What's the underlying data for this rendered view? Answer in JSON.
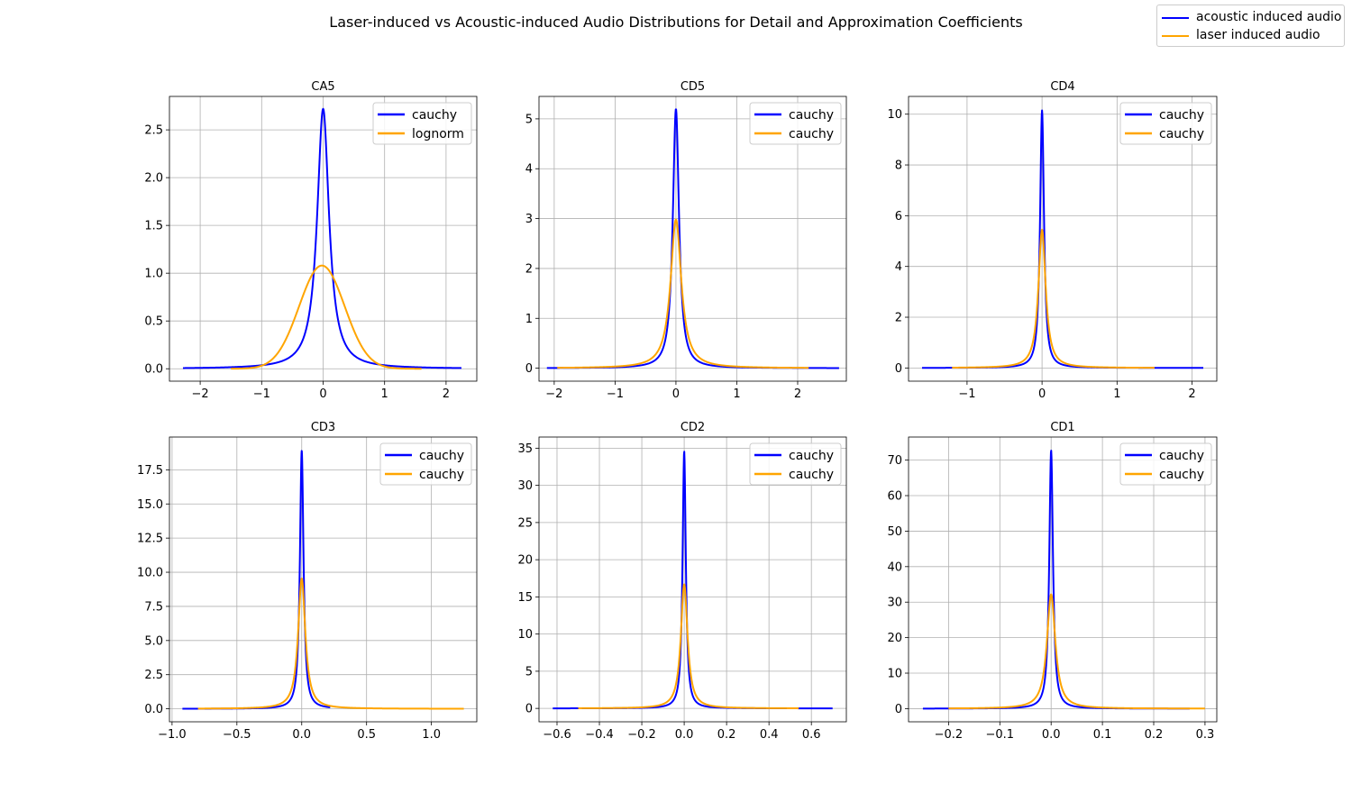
{
  "figure_title": "Laser-induced vs Acoustic-induced Audio Distributions for Detail and Approximation Coefficients",
  "legend": [
    {
      "label": "acoustic induced audio",
      "color": "#0000ff"
    },
    {
      "label": "laser induced audio",
      "color": "#ffa500"
    }
  ],
  "chart_data": [
    {
      "type": "line",
      "title": "CA5",
      "xlim": [
        -2.5,
        2.5
      ],
      "ylim": [
        -0.13,
        2.85
      ],
      "xticks": [
        -2,
        -1,
        0,
        1,
        2
      ],
      "xtick_labels": [
        "−2",
        "−1",
        "0",
        "1",
        "2"
      ],
      "yticks": [
        0,
        0.5,
        1,
        1.5,
        2,
        2.5
      ],
      "ytick_labels": [
        "0.0",
        "0.5",
        "1.0",
        "1.5",
        "2.0",
        "2.5"
      ],
      "grid": true,
      "legend_placement": "top-right",
      "series": [
        {
          "name": "cauchy",
          "dist": "cauchy",
          "color": "#0000ff",
          "loc": 0.0,
          "peak": 2.72,
          "x_range": [
            -2.28,
            2.25
          ]
        },
        {
          "name": "lognorm",
          "dist": "gauss",
          "color": "#ffa500",
          "loc": -0.02,
          "peak": 1.08,
          "sigma": 0.37,
          "x_range": [
            -1.5,
            1.6
          ]
        }
      ]
    },
    {
      "type": "line",
      "title": "CD5",
      "xlim": [
        -2.25,
        2.8
      ],
      "ylim": [
        -0.26,
        5.45
      ],
      "xticks": [
        -2,
        -1,
        0,
        1,
        2
      ],
      "xtick_labels": [
        "−2",
        "−1",
        "0",
        "1",
        "2"
      ],
      "yticks": [
        0,
        1,
        2,
        3,
        4,
        5
      ],
      "ytick_labels": [
        "0",
        "1",
        "2",
        "3",
        "4",
        "5"
      ],
      "grid": true,
      "legend_placement": "top-right",
      "series": [
        {
          "name": "cauchy",
          "dist": "cauchy",
          "color": "#0000ff",
          "loc": 0.0,
          "peak": 5.2,
          "x_range": [
            -2.12,
            2.68
          ]
        },
        {
          "name": "cauchy",
          "dist": "cauchy",
          "color": "#ffa500",
          "loc": 0.0,
          "peak": 2.98,
          "x_range": [
            -1.95,
            2.18
          ]
        }
      ]
    },
    {
      "type": "line",
      "title": "CD4",
      "xlim": [
        -1.78,
        2.33
      ],
      "ylim": [
        -0.52,
        10.7
      ],
      "xticks": [
        -1,
        0,
        1,
        2
      ],
      "xtick_labels": [
        "−1",
        "0",
        "1",
        "2"
      ],
      "yticks": [
        0,
        2,
        4,
        6,
        8,
        10
      ],
      "ytick_labels": [
        "0",
        "2",
        "4",
        "6",
        "8",
        "10"
      ],
      "grid": true,
      "legend_placement": "top-right",
      "series": [
        {
          "name": "cauchy",
          "dist": "cauchy",
          "color": "#0000ff",
          "loc": 0.0,
          "peak": 10.15,
          "x_range": [
            -1.6,
            2.15
          ]
        },
        {
          "name": "cauchy",
          "dist": "cauchy",
          "color": "#ffa500",
          "loc": 0.0,
          "peak": 5.45,
          "x_range": [
            -1.2,
            1.5
          ]
        }
      ]
    },
    {
      "type": "line",
      "title": "CD3",
      "xlim": [
        -1.02,
        1.35
      ],
      "ylim": [
        -0.95,
        19.9
      ],
      "xticks": [
        -1,
        -0.5,
        0,
        0.5,
        1
      ],
      "xtick_labels": [
        "−1.0",
        "−0.5",
        "0.0",
        "0.5",
        "1.0"
      ],
      "yticks": [
        0,
        2.5,
        5,
        7.5,
        10,
        12.5,
        15,
        17.5
      ],
      "ytick_labels": [
        "0.0",
        "2.5",
        "5.0",
        "7.5",
        "10.0",
        "12.5",
        "15.0",
        "17.5"
      ],
      "grid": true,
      "legend_placement": "top-right",
      "series": [
        {
          "name": "cauchy",
          "dist": "cauchy",
          "color": "#0000ff",
          "loc": 0.0,
          "peak": 18.9,
          "x_range": [
            -0.92,
            0.22
          ]
        },
        {
          "name": "cauchy",
          "dist": "cauchy",
          "color": "#ffa500",
          "loc": 0.0,
          "peak": 9.55,
          "x_range": [
            -0.8,
            1.25
          ]
        }
      ]
    },
    {
      "type": "line",
      "title": "CD2",
      "xlim": [
        -0.685,
        0.765
      ],
      "ylim": [
        -1.8,
        36.5
      ],
      "xticks": [
        -0.6,
        -0.4,
        -0.2,
        0,
        0.2,
        0.4,
        0.6
      ],
      "xtick_labels": [
        "−0.6",
        "−0.4",
        "−0.2",
        "0.0",
        "0.2",
        "0.4",
        "0.6"
      ],
      "yticks": [
        0,
        5,
        10,
        15,
        20,
        25,
        30,
        35
      ],
      "ytick_labels": [
        "0",
        "5",
        "10",
        "15",
        "20",
        "25",
        "30",
        "35"
      ],
      "grid": true,
      "legend_placement": "top-right",
      "series": [
        {
          "name": "cauchy",
          "dist": "cauchy",
          "color": "#0000ff",
          "loc": 0.0,
          "peak": 34.6,
          "x_range": [
            -0.62,
            0.7
          ]
        },
        {
          "name": "cauchy",
          "dist": "cauchy",
          "color": "#ffa500",
          "loc": 0.0,
          "peak": 16.7,
          "x_range": [
            -0.5,
            0.54
          ]
        }
      ]
    },
    {
      "type": "line",
      "title": "CD1",
      "xlim": [
        -0.278,
        0.323
      ],
      "ylim": [
        -3.7,
        76.5
      ],
      "xticks": [
        -0.2,
        -0.1,
        0,
        0.1,
        0.2,
        0.3
      ],
      "xtick_labels": [
        "−0.2",
        "−0.1",
        "0.0",
        "0.1",
        "0.2",
        "0.3"
      ],
      "yticks": [
        0,
        10,
        20,
        30,
        40,
        50,
        60,
        70
      ],
      "ytick_labels": [
        "0",
        "10",
        "20",
        "30",
        "40",
        "50",
        "60",
        "70"
      ],
      "grid": true,
      "legend_placement": "top-right",
      "series": [
        {
          "name": "cauchy",
          "dist": "cauchy",
          "color": "#0000ff",
          "loc": 0.0,
          "peak": 72.8,
          "x_range": [
            -0.25,
            0.27
          ]
        },
        {
          "name": "cauchy",
          "dist": "cauchy",
          "color": "#ffa500",
          "loc": 0.0,
          "peak": 32.2,
          "x_range": [
            -0.2,
            0.3
          ]
        }
      ]
    }
  ]
}
